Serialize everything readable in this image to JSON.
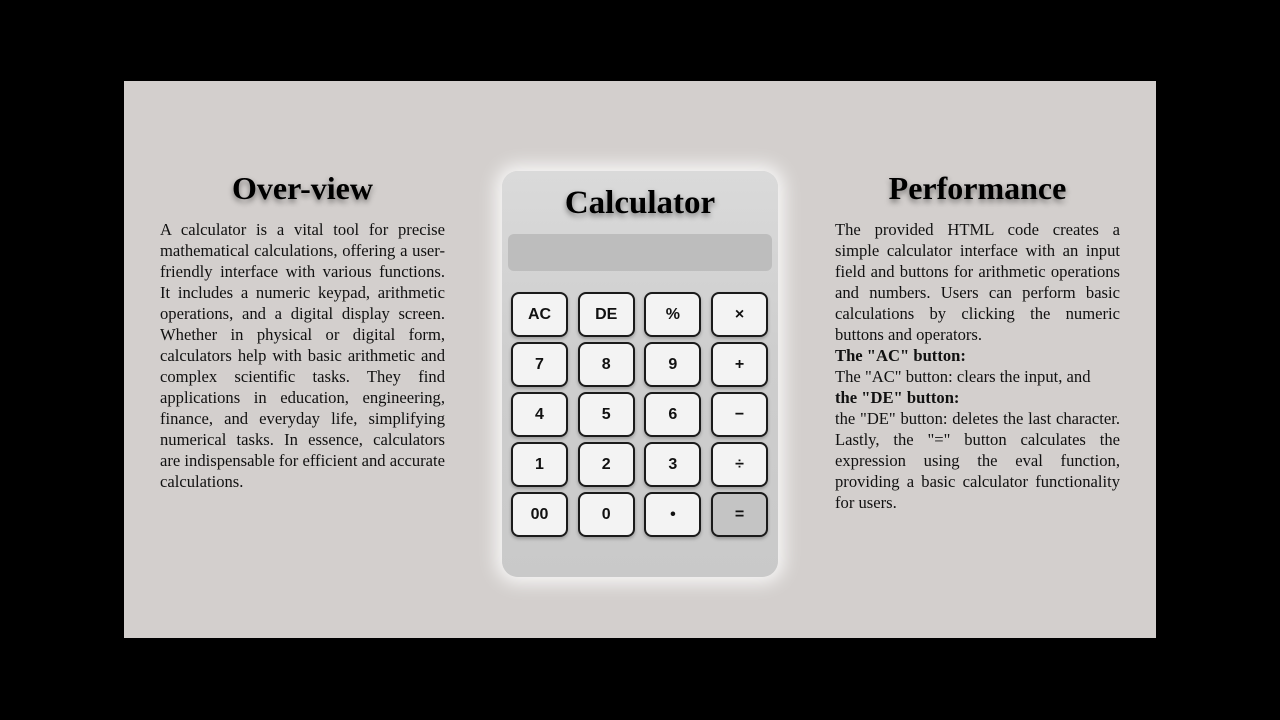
{
  "overview": {
    "heading": "Over-view",
    "text": "A calculator is a vital tool for precise mathematical calculations, offering a user-friendly interface with various functions. It includes a numeric keypad, arithmetic operations, and a digital display screen. Whether in physical or digital form, calculators help with basic arithmetic and complex scientific tasks. They find applications in education, engineering, finance, and everyday life, simplifying numerical tasks. In essence, calculators are indispensable for efficient and accurate calculations."
  },
  "calculator": {
    "title": "Calculator",
    "display_value": "",
    "keys": {
      "ac": "AC",
      "de": "DE",
      "percent": "%",
      "multiply": "×",
      "seven": "7",
      "eight": "8",
      "nine": "9",
      "plus": "+",
      "four": "4",
      "five": "5",
      "six": "6",
      "minus": "−",
      "one": "1",
      "two": "2",
      "three": "3",
      "divide": "÷",
      "double_zero": "00",
      "zero": "0",
      "dot": "•",
      "equals": "="
    }
  },
  "performance": {
    "heading": "Performance",
    "intro": "The provided HTML code creates a simple calculator interface with an input field and buttons for arithmetic operations and numbers. Users can perform basic calculations by clicking the numeric buttons and operators.",
    "ac_heading": "The \"AC\" button:",
    "ac_text": "The \"AC\" button: clears the input, and",
    "de_heading": "the \"DE\" button:",
    "de_text": "the \"DE\" button: deletes the last character. Lastly, the \"=\" button calculates the expression using the eval function, providing a basic calculator functionality for users."
  },
  "colors": {
    "page_background": "#000000",
    "panel_background": "#d3cfcd",
    "calculator_body": "#cecece",
    "display_background": "#bdbdbd",
    "key_background": "#f3f3f3",
    "equals_key_background": "#c4c4c4",
    "key_border": "#1a1a1a"
  }
}
